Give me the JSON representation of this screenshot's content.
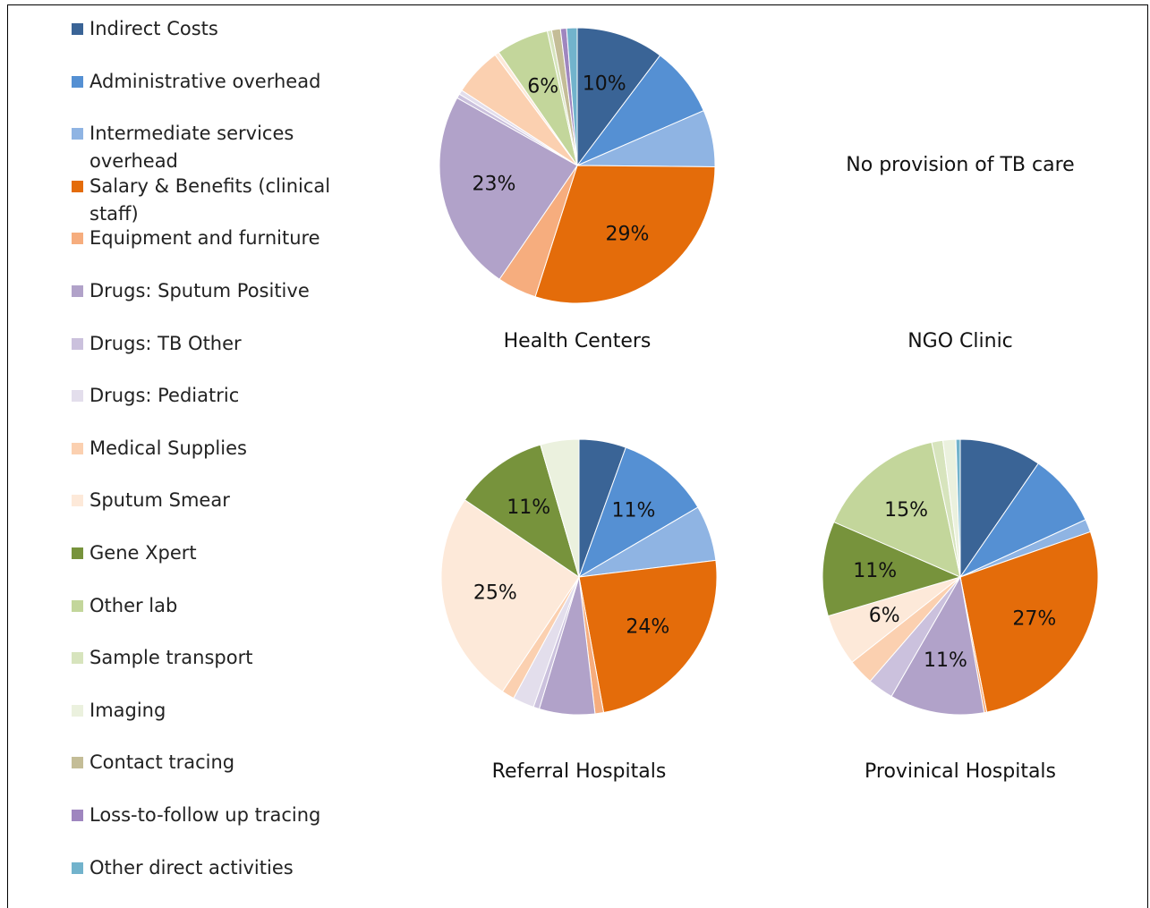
{
  "legend": {
    "categories": [
      "Indirect Costs",
      "Administrative overhead",
      "Intermediate services overhead",
      "Salary & Benefits (clinical staff)",
      "Equipment and furniture",
      "Drugs: Sputum Positive",
      "Drugs: TB Other",
      "Drugs: Pediatric",
      "Medical Supplies",
      "Sputum Smear",
      "Gene Xpert",
      "Other lab",
      "Sample transport",
      "Imaging",
      "Contact tracing",
      "Loss-to-follow up tracing",
      "Other direct activities"
    ],
    "colors": [
      "#3a6496",
      "#5590d3",
      "#8fb4e3",
      "#e46c0a",
      "#f6ad7e",
      "#b1a2c9",
      "#cbc1dd",
      "#e3deec",
      "#fbd0b0",
      "#fde9d9",
      "#77933c",
      "#c3d69b",
      "#d7e4bd",
      "#ebf1de",
      "#c4bd97",
      "#9f86bf",
      "#72b3cc"
    ]
  },
  "chart_data": [
    {
      "type": "pie",
      "title": "Health Centers",
      "values": [
        10,
        8,
        6.5,
        29,
        4.5,
        23,
        0.5,
        0.5,
        5.5,
        0.5,
        0,
        6,
        0.5,
        0,
        1,
        0.7,
        1.2
      ],
      "value_labels": [
        "10%",
        null,
        null,
        "29%",
        null,
        "23%",
        null,
        null,
        null,
        null,
        null,
        "6%",
        null,
        null,
        null,
        null,
        null
      ]
    },
    {
      "type": "pie",
      "title": "NGO Clinic",
      "annotation": "No provision of TB care"
    },
    {
      "type": "pie",
      "title": "Referral Hospitals",
      "values": [
        5.5,
        11,
        6.5,
        24,
        1,
        6.5,
        0.7,
        2.5,
        1.5,
        25,
        11,
        0,
        0,
        4.5,
        0,
        0,
        0
      ],
      "value_labels": [
        null,
        "11%",
        null,
        "24%",
        null,
        null,
        null,
        null,
        null,
        "25%",
        "11%",
        null,
        null,
        null,
        null,
        null,
        null
      ]
    },
    {
      "type": "pie",
      "title": "Provinical Hospitals",
      "values": [
        9.5,
        8.5,
        1.5,
        27,
        0.3,
        11,
        3,
        0,
        3,
        6,
        11,
        15,
        1.3,
        1.5,
        0,
        0,
        0.5
      ],
      "value_labels": [
        null,
        null,
        null,
        "27%",
        null,
        "11%",
        null,
        null,
        null,
        "6%",
        "11%",
        "15%",
        null,
        null,
        null,
        null,
        null
      ]
    }
  ]
}
